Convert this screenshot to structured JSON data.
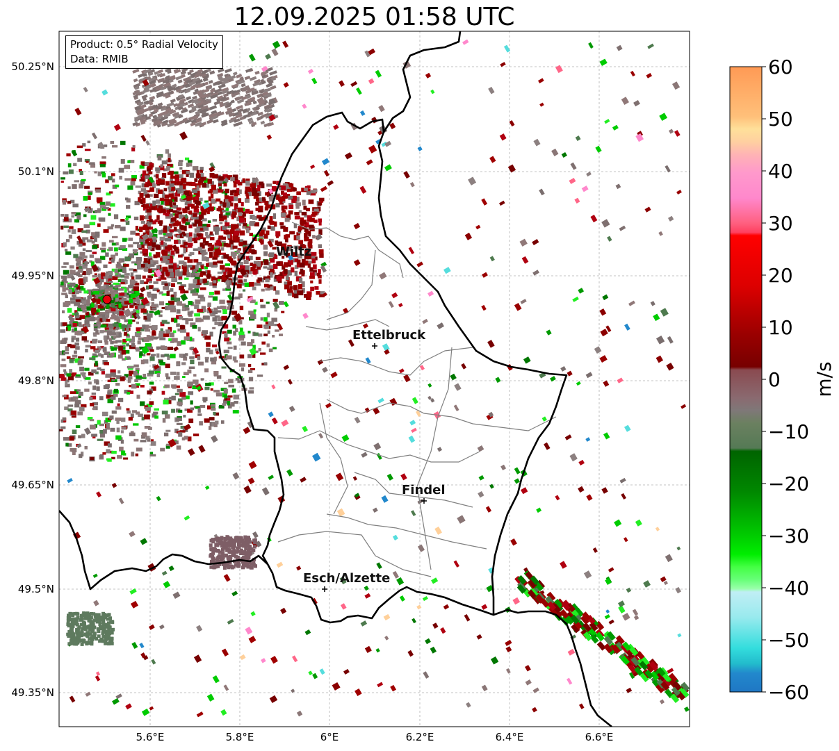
{
  "title": "12.09.2025 01:58 UTC",
  "info": {
    "product": "Product: 0.5° Radial Velocity",
    "data": "Data: RMIB"
  },
  "axes": {
    "lon_ticks": [
      "5.6°E",
      "5.8°E",
      "6°E",
      "6.2°E",
      "6.4°E",
      "6.6°E"
    ],
    "lat_ticks": [
      "50.25°N",
      "50.1°N",
      "49.95°N",
      "49.8°N",
      "49.65°N",
      "49.5°N",
      "49.35°N"
    ]
  },
  "cities": [
    {
      "name": "Wiltz"
    },
    {
      "name": "Ettelbruck"
    },
    {
      "name": "Findel"
    },
    {
      "name": "Esch/Alzette"
    }
  ],
  "colorbar": {
    "label": "m/s",
    "ticks": [
      "60",
      "50",
      "40",
      "30",
      "20",
      "10",
      "0",
      "−10",
      "−20",
      "−30",
      "−40",
      "−50",
      "−60"
    ],
    "min": -60,
    "max": 60
  },
  "colors": {
    "grid": "#b0b0b0",
    "border": "#000000",
    "admin": "#808080",
    "radar_site": "#e8000b"
  }
}
